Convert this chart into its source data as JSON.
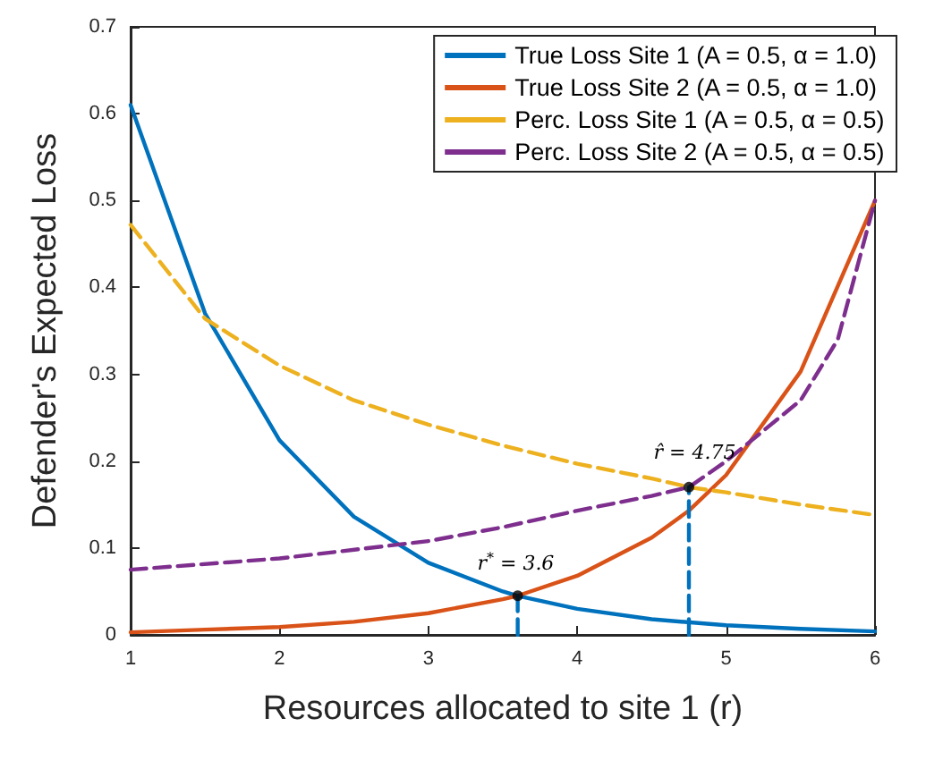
{
  "chart_data": {
    "type": "line",
    "xlabel": "Resources allocated to site 1 (r)",
    "ylabel": "Defender's Expected Loss",
    "xlim": [
      1,
      6
    ],
    "xticks": [
      1,
      2,
      3,
      4,
      5,
      6
    ],
    "ylim": [
      0,
      0.7
    ],
    "yticks": [
      0,
      0.1,
      0.2,
      0.3,
      0.4,
      0.5,
      0.6,
      0.7
    ],
    "grid": false,
    "legend": "top right",
    "marker": "none",
    "series": [
      {
        "name": "True Loss Site 1 (A = 0.5, α = 1.0)",
        "color": "#0072bd",
        "line_style": "solid",
        "x": [
          1,
          1.5,
          2,
          2.5,
          3,
          3.5,
          3.6,
          4,
          4.5,
          5,
          5.5,
          6
        ],
        "values": [
          0.61,
          0.37,
          0.224,
          0.136,
          0.083,
          0.05,
          0.045,
          0.03,
          0.018,
          0.011,
          0.007,
          0.004
        ]
      },
      {
        "name": "True Loss Site 2 (A = 0.5, α = 1.0)",
        "color": "#d95319",
        "line_style": "solid",
        "x": [
          1,
          1.5,
          2,
          2.5,
          3,
          3.5,
          3.6,
          4,
          4.5,
          4.75,
          5,
          5.5,
          6
        ],
        "values": [
          0.003,
          0.006,
          0.009,
          0.015,
          0.025,
          0.041,
          0.045,
          0.068,
          0.112,
          0.143,
          0.184,
          0.303,
          0.5
        ]
      },
      {
        "name": "Perc. Loss Site 1 (A = 0.5, α = 0.5)",
        "color": "#edb120",
        "line_style": "dashed",
        "x": [
          1,
          1.5,
          2,
          2.5,
          3,
          3.5,
          4,
          4.5,
          4.75,
          5,
          5.5,
          6
        ],
        "values": [
          0.472,
          0.364,
          0.31,
          0.27,
          0.242,
          0.218,
          0.197,
          0.18,
          0.17,
          0.164,
          0.15,
          0.138
        ]
      },
      {
        "name": "Perc. Loss Site 2 (A = 0.5, α = 0.5)",
        "color": "#7e2f8e",
        "line_style": "dashed",
        "x": [
          1,
          2,
          3,
          3.5,
          4,
          4.5,
          4.75,
          5,
          5.5,
          5.75,
          6
        ],
        "values": [
          0.075,
          0.088,
          0.108,
          0.124,
          0.143,
          0.16,
          0.17,
          0.2,
          0.27,
          0.34,
          0.5
        ]
      },
      {
        "type": "line",
        "color": "#0072bd",
        "line_style": "dashed",
        "x": [
          3.6,
          3.6
        ],
        "values": [
          0,
          0.045
        ]
      },
      {
        "type": "line",
        "color": "#0072bd",
        "line_style": "dashed",
        "x": [
          4.75,
          4.75
        ],
        "values": [
          0,
          0.17
        ]
      },
      {
        "type": "scatter",
        "color": "#000000",
        "marker": "circle",
        "x": [
          3.6,
          4.75
        ],
        "values": [
          0.045,
          0.17
        ]
      }
    ],
    "annotations": [
      {
        "text": "r$^{*}$ = 3.6",
        "x": 3.6,
        "y": 0.045
      },
      {
        "text": "r̂ = 4.75",
        "x": 4.75,
        "y": 0.17
      }
    ]
  }
}
